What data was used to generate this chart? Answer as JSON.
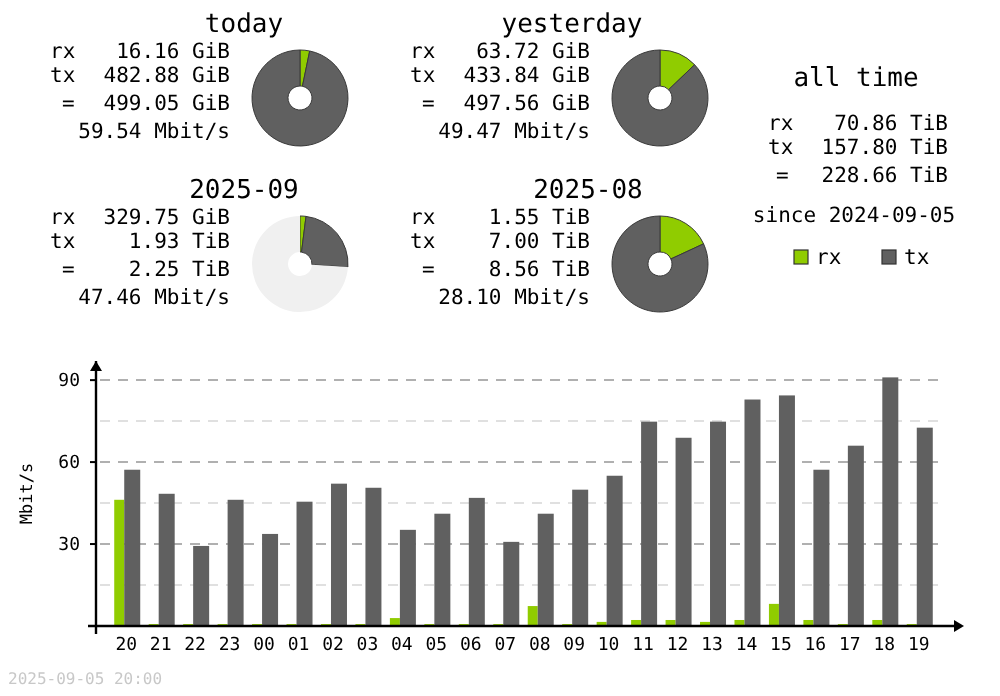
{
  "chart_data": [
    {
      "type": "donut",
      "title": "today",
      "categories": [
        null,
        null
      ],
      "values": [
        3.24,
        96.76
      ],
      "colors": [
        "#90cc00",
        "#606060"
      ],
      "annotations": [
        "rx",
        "16.16 GiB",
        "tx",
        "482.88 GiB",
        "=",
        "499.05 GiB",
        "59.54 Mbit/s"
      ]
    },
    {
      "type": "donut",
      "title": "yesterday",
      "categories": [
        null,
        null
      ],
      "values": [
        12.81,
        87.19
      ],
      "colors": [
        "#90cc00",
        "#606060"
      ],
      "annotations": [
        "rx",
        "63.72 GiB",
        "tx",
        "433.84 GiB",
        "=",
        "497.56 GiB",
        "49.47 Mbit/s"
      ]
    },
    {
      "type": "other",
      "title": "all time",
      "annotations": [
        "rx",
        "70.86 TiB",
        "tx",
        "157.80 TiB",
        "=",
        "228.66 TiB",
        "since 2024-09-05"
      ]
    },
    {
      "type": "donut",
      "title": "2025-09",
      "categories": [
        null,
        null,
        null
      ],
      "values": [
        2,
        24,
        74
      ],
      "colors": [
        "#90cc00",
        "#606060",
        "#f0f0f0"
      ],
      "annotations": [
        "rx",
        "329.75 GiB",
        "tx",
        "1.93 TiB",
        "=",
        "2.25 TiB",
        "47.46 Mbit/s"
      ]
    },
    {
      "type": "donut",
      "title": "2025-08",
      "categories": [
        null,
        null
      ],
      "values": [
        18.1,
        81.9
      ],
      "colors": [
        "#90cc00",
        "#606060"
      ],
      "annotations": [
        "rx",
        "1.55 TiB",
        "tx",
        "7.00 TiB",
        "=",
        "8.56 TiB",
        "28.10 Mbit/s"
      ]
    },
    {
      "type": "bar",
      "categories": [
        "20",
        "21",
        "22",
        "23",
        "00",
        "01",
        "02",
        "03",
        "04",
        "05",
        "06",
        "07",
        "08",
        "09",
        "10",
        "11",
        "12",
        "13",
        "14",
        "15",
        "16",
        "17",
        "18",
        "19"
      ],
      "series": [
        {
          "name": "rx",
          "color": "#90cc00",
          "values": [
            46.2,
            0.7,
            0.7,
            0.7,
            0.7,
            0.7,
            0.7,
            0.7,
            2.9,
            0.7,
            0.7,
            0.7,
            7.3,
            0.7,
            1.5,
            2.2,
            2.2,
            1.5,
            2.2,
            8.1,
            2.2,
            0.7,
            2.2,
            0.7
          ]
        },
        {
          "name": "tx",
          "color": "#606060",
          "values": [
            57.2,
            48.4,
            29.3,
            46.2,
            33.7,
            45.5,
            52.1,
            50.6,
            35.2,
            41.1,
            46.9,
            30.8,
            41.1,
            49.9,
            55.0,
            74.8,
            68.9,
            74.8,
            82.9,
            84.4,
            57.2,
            66.0,
            91.0,
            72.6
          ]
        }
      ],
      "ylabel": "Mbit/s",
      "ylim": [
        0,
        97
      ],
      "yticks": [
        {
          "value": 15,
          "label": null
        },
        30,
        {
          "value": 45,
          "label": null
        },
        60,
        {
          "value": 75,
          "label": null
        },
        90
      ],
      "grid": "y",
      "legend": "top right",
      "annotations": [
        "2025-09-05 20:00"
      ]
    }
  ]
}
